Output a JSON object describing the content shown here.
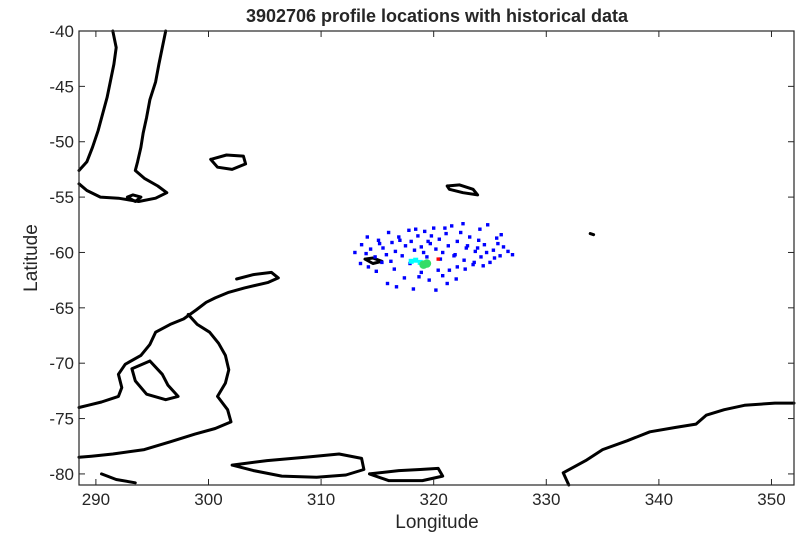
{
  "chart_data": {
    "type": "scatter",
    "title": "3902706 profile locations with historical data",
    "xlabel": "Longitude",
    "ylabel": "Latitude",
    "xlim": [
      288.5,
      352
    ],
    "ylim": [
      -81,
      -40
    ],
    "xticks": [
      290,
      300,
      310,
      320,
      330,
      340,
      350
    ],
    "yticks": [
      -40,
      -45,
      -50,
      -55,
      -60,
      -65,
      -70,
      -75,
      -80
    ],
    "grid": false,
    "colors": {
      "historical": "#0000ff",
      "profiles": "#00ffff",
      "current": "#33dd66",
      "latest": "#ff0000",
      "coastline": "#000000"
    },
    "series": [
      {
        "role": "historical",
        "points": [
          [
            313.0,
            -60.0
          ],
          [
            313.6,
            -59.3
          ],
          [
            314.1,
            -58.6
          ],
          [
            314.4,
            -59.7
          ],
          [
            314.8,
            -60.4
          ],
          [
            315.1,
            -58.9
          ],
          [
            315.5,
            -59.6
          ],
          [
            315.8,
            -60.2
          ],
          [
            316.0,
            -58.2
          ],
          [
            316.3,
            -59.1
          ],
          [
            316.6,
            -59.9
          ],
          [
            316.9,
            -58.6
          ],
          [
            317.2,
            -60.3
          ],
          [
            317.5,
            -59.4
          ],
          [
            317.8,
            -58.0
          ],
          [
            318.0,
            -59.0
          ],
          [
            318.3,
            -59.8
          ],
          [
            318.6,
            -58.5
          ],
          [
            318.9,
            -59.5
          ],
          [
            319.2,
            -58.1
          ],
          [
            319.4,
            -60.4
          ],
          [
            319.7,
            -59.2
          ],
          [
            320.0,
            -57.8
          ],
          [
            320.2,
            -59.7
          ],
          [
            320.5,
            -58.8
          ],
          [
            320.8,
            -60.0
          ],
          [
            321.1,
            -58.3
          ],
          [
            321.3,
            -59.4
          ],
          [
            321.6,
            -57.6
          ],
          [
            321.9,
            -60.2
          ],
          [
            322.1,
            -59.0
          ],
          [
            322.4,
            -58.2
          ],
          [
            322.7,
            -60.7
          ],
          [
            322.9,
            -59.6
          ],
          [
            323.2,
            -58.6
          ],
          [
            323.5,
            -61.1
          ],
          [
            323.7,
            -59.9
          ],
          [
            324.0,
            -58.9
          ],
          [
            324.2,
            -60.4
          ],
          [
            324.5,
            -59.3
          ],
          [
            324.8,
            -57.5
          ],
          [
            325.0,
            -60.9
          ],
          [
            325.3,
            -59.8
          ],
          [
            325.6,
            -58.7
          ],
          [
            325.9,
            -60.3
          ],
          [
            326.2,
            -59.5
          ],
          [
            326.6,
            -59.9
          ],
          [
            327.0,
            -60.2
          ],
          [
            314.9,
            -61.7
          ],
          [
            315.9,
            -62.8
          ],
          [
            316.7,
            -63.1
          ],
          [
            317.4,
            -62.3
          ],
          [
            318.2,
            -63.3
          ],
          [
            318.9,
            -61.8
          ],
          [
            319.6,
            -62.5
          ],
          [
            320.2,
            -63.4
          ],
          [
            320.8,
            -62.1
          ],
          [
            321.4,
            -61.6
          ],
          [
            322.1,
            -61.3
          ],
          [
            322.8,
            -61.5
          ],
          [
            323.6,
            -60.9
          ],
          [
            324.4,
            -61.2
          ],
          [
            313.5,
            -61.0
          ],
          [
            314.2,
            -61.3
          ],
          [
            319.8,
            -58.5
          ],
          [
            321.0,
            -57.8
          ],
          [
            322.6,
            -57.4
          ],
          [
            324.1,
            -57.9
          ],
          [
            316.2,
            -60.8
          ],
          [
            317.9,
            -61.0
          ],
          [
            319.1,
            -60.0
          ],
          [
            320.6,
            -60.6
          ],
          [
            323.0,
            -59.4
          ],
          [
            325.4,
            -60.5
          ],
          [
            326.0,
            -58.4
          ],
          [
            318.4,
            -57.9
          ],
          [
            317.0,
            -58.9
          ],
          [
            315.4,
            -60.9
          ],
          [
            314.0,
            -60.1
          ],
          [
            322.0,
            -62.4
          ],
          [
            320.4,
            -61.6
          ],
          [
            324.7,
            -60.0
          ],
          [
            316.5,
            -61.5
          ],
          [
            318.7,
            -62.2
          ],
          [
            321.8,
            -60.3
          ],
          [
            319.5,
            -59.0
          ],
          [
            323.9,
            -59.6
          ],
          [
            315.2,
            -59.2
          ],
          [
            321.2,
            -62.8
          ],
          [
            325.7,
            -59.2
          ]
        ]
      },
      {
        "role": "profiles",
        "points": [
          [
            318.0,
            -60.8
          ],
          [
            318.4,
            -60.7
          ],
          [
            318.8,
            -60.9
          ],
          [
            319.2,
            -61.0
          ]
        ]
      },
      {
        "role": "current",
        "points": [
          [
            319.1,
            -61.1
          ],
          [
            319.4,
            -61.0
          ]
        ]
      },
      {
        "role": "latest",
        "points": [
          [
            320.4,
            -60.6
          ]
        ]
      }
    ],
    "coastlines": [
      [
        [
          291.5,
          -40.0
        ],
        [
          291.8,
          -41.5
        ],
        [
          291.6,
          -43.0
        ],
        [
          291.3,
          -44.5
        ],
        [
          291.0,
          -46.0
        ],
        [
          290.6,
          -47.5
        ],
        [
          290.2,
          -49.0
        ],
        [
          289.7,
          -50.5
        ],
        [
          289.2,
          -51.8
        ],
        [
          288.5,
          -52.6
        ]
      ],
      [
        [
          296.2,
          -40.0
        ],
        [
          295.9,
          -41.5
        ],
        [
          295.6,
          -43.0
        ],
        [
          295.3,
          -44.6
        ],
        [
          294.8,
          -46.2
        ],
        [
          294.5,
          -47.8
        ],
        [
          294.2,
          -49.2
        ],
        [
          294.0,
          -50.5
        ],
        [
          293.7,
          -51.8
        ],
        [
          293.5,
          -52.6
        ],
        [
          294.3,
          -53.3
        ],
        [
          295.5,
          -54.0
        ],
        [
          296.3,
          -54.6
        ],
        [
          295.3,
          -55.1
        ],
        [
          293.8,
          -55.4
        ],
        [
          292.0,
          -55.1
        ],
        [
          290.4,
          -55.0
        ],
        [
          289.2,
          -54.4
        ],
        [
          288.5,
          -53.8
        ]
      ],
      [
        [
          292.8,
          -55.0
        ],
        [
          293.5,
          -55.4
        ],
        [
          294.0,
          -55.0
        ],
        [
          293.3,
          -54.8
        ],
        [
          292.8,
          -55.0
        ]
      ],
      [
        [
          300.2,
          -51.6
        ],
        [
          301.6,
          -51.2
        ],
        [
          303.1,
          -51.3
        ],
        [
          303.3,
          -52.0
        ],
        [
          302.1,
          -52.5
        ],
        [
          300.8,
          -52.3
        ],
        [
          300.2,
          -51.6
        ]
      ],
      [
        [
          321.2,
          -54.0
        ],
        [
          322.3,
          -53.9
        ],
        [
          323.5,
          -54.3
        ],
        [
          323.9,
          -54.8
        ],
        [
          322.6,
          -54.6
        ],
        [
          321.4,
          -54.3
        ],
        [
          321.2,
          -54.0
        ]
      ],
      [
        [
          313.9,
          -60.6
        ],
        [
          314.6,
          -60.5
        ],
        [
          315.4,
          -60.8
        ],
        [
          314.6,
          -61.0
        ],
        [
          313.9,
          -60.6
        ]
      ],
      [
        [
          333.9,
          -58.3
        ],
        [
          334.2,
          -58.4
        ]
      ],
      [
        [
          302.5,
          -62.4
        ],
        [
          304.0,
          -62.0
        ],
        [
          305.6,
          -61.8
        ],
        [
          306.2,
          -62.3
        ],
        [
          305.3,
          -62.7
        ],
        [
          303.2,
          -63.2
        ],
        [
          301.8,
          -63.6
        ],
        [
          300.6,
          -64.1
        ],
        [
          299.8,
          -64.5
        ],
        [
          298.9,
          -65.2
        ],
        [
          297.8,
          -66.0
        ],
        [
          296.6,
          -66.5
        ],
        [
          295.3,
          -67.2
        ],
        [
          294.8,
          -68.3
        ],
        [
          294.0,
          -69.3
        ],
        [
          292.6,
          -70.1
        ],
        [
          292.0,
          -71.0
        ],
        [
          292.3,
          -72.2
        ],
        [
          292.0,
          -73.0
        ],
        [
          290.5,
          -73.5
        ],
        [
          289.3,
          -73.8
        ],
        [
          288.5,
          -74.0
        ]
      ],
      [
        [
          294.8,
          -69.8
        ],
        [
          293.2,
          -70.5
        ],
        [
          293.5,
          -71.6
        ],
        [
          294.5,
          -72.8
        ],
        [
          296.2,
          -73.3
        ],
        [
          297.3,
          -73.0
        ],
        [
          296.4,
          -72.0
        ],
        [
          295.9,
          -71.0
        ],
        [
          294.8,
          -69.8
        ]
      ],
      [
        [
          298.2,
          -65.6
        ],
        [
          299.0,
          -66.5
        ],
        [
          300.1,
          -67.2
        ],
        [
          300.9,
          -68.2
        ],
        [
          301.5,
          -69.3
        ],
        [
          301.8,
          -70.6
        ],
        [
          301.5,
          -71.8
        ],
        [
          300.8,
          -73.0
        ],
        [
          301.7,
          -74.2
        ],
        [
          302.0,
          -75.3
        ],
        [
          300.6,
          -75.9
        ],
        [
          298.8,
          -76.4
        ],
        [
          296.6,
          -77.1
        ],
        [
          294.3,
          -77.8
        ],
        [
          291.5,
          -78.2
        ],
        [
          289.6,
          -78.4
        ],
        [
          288.5,
          -78.5
        ]
      ],
      [
        [
          290.5,
          -80.0
        ],
        [
          291.8,
          -80.5
        ],
        [
          293.5,
          -80.8
        ]
      ],
      [
        [
          302.1,
          -79.2
        ],
        [
          305.2,
          -78.8
        ],
        [
          308.6,
          -78.5
        ],
        [
          311.6,
          -78.2
        ],
        [
          313.6,
          -78.6
        ],
        [
          313.8,
          -79.6
        ],
        [
          312.2,
          -80.1
        ],
        [
          309.6,
          -80.3
        ],
        [
          306.5,
          -80.2
        ],
        [
          304.0,
          -79.7
        ],
        [
          302.1,
          -79.2
        ]
      ],
      [
        [
          314.3,
          -80.0
        ],
        [
          316.9,
          -79.7
        ],
        [
          318.8,
          -79.6
        ],
        [
          320.4,
          -79.5
        ],
        [
          320.8,
          -80.2
        ],
        [
          319.0,
          -80.6
        ],
        [
          316.0,
          -80.6
        ],
        [
          314.3,
          -80.0
        ]
      ],
      [
        [
          332.0,
          -81.0
        ],
        [
          331.5,
          -79.9
        ],
        [
          333.5,
          -78.8
        ],
        [
          335.0,
          -77.8
        ],
        [
          337.2,
          -77.0
        ],
        [
          339.2,
          -76.2
        ],
        [
          341.5,
          -75.8
        ],
        [
          343.3,
          -75.5
        ],
        [
          344.2,
          -74.7
        ],
        [
          345.8,
          -74.2
        ],
        [
          347.6,
          -73.8
        ],
        [
          350.3,
          -73.6
        ],
        [
          352.0,
          -73.6
        ]
      ]
    ]
  }
}
